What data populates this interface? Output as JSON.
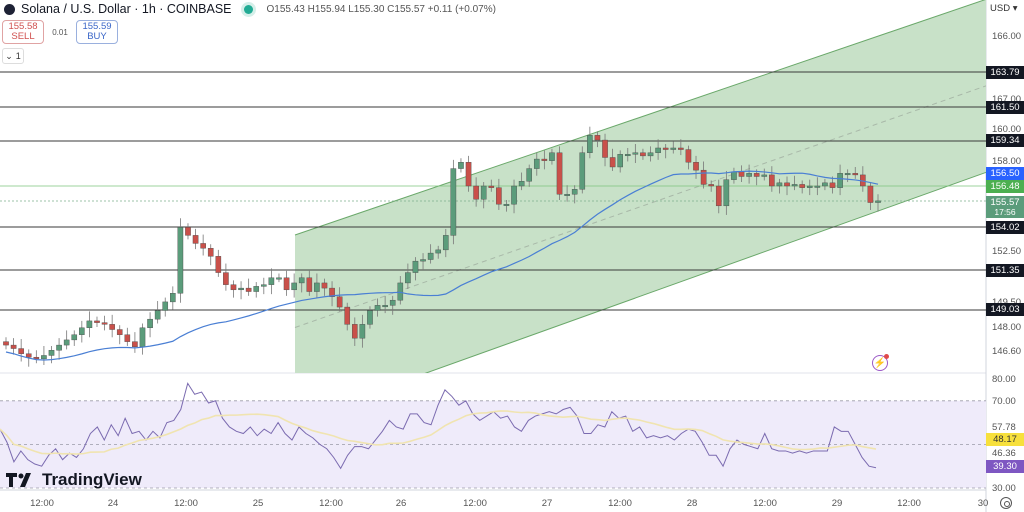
{
  "header": {
    "symbol": "Solana / U.S. Dollar · 1h · COINBASE",
    "ohlc": "O155.43 H155.94 L155.30 C155.57 +0.11 (+0.07%)",
    "sell_price": "155.58",
    "sell_label": "SELL",
    "spread": "0.01",
    "buy_price": "155.59",
    "buy_label": "BUY",
    "collapse_count": "1",
    "currency": "USD"
  },
  "branding": {
    "logo_text": "TradingView"
  },
  "colors": {
    "up": "#5b9c7b",
    "down": "#c9504a",
    "channel_fill": "#c8e1c8",
    "channel_line": "#6aa86a",
    "ma": "#4a7fd4",
    "rsi": "#7b6bb0",
    "rsi_ma": "#f0e4b0",
    "rsi_band": "#efebfa",
    "level": "#3a3a3a"
  },
  "price_axis": {
    "labels": [
      "166.00",
      "167.00",
      "160.00",
      "158.00",
      "152.50",
      "149.50",
      "148.00",
      "146.60"
    ],
    "tags": [
      {
        "value": "163.79",
        "color": "#131722"
      },
      {
        "value": "161.50",
        "color": "#131722"
      },
      {
        "value": "159.34",
        "color": "#131722"
      },
      {
        "value": "156.50",
        "color": "#2962ff"
      },
      {
        "value": "156.48",
        "color": "#4caf50"
      },
      {
        "value": "155.57",
        "color": "#5b9c7b"
      },
      {
        "value": "154.02",
        "color": "#131722"
      },
      {
        "value": "151.35",
        "color": "#131722"
      },
      {
        "value": "149.03",
        "color": "#131722"
      }
    ],
    "countdown": "17:56"
  },
  "rsi_axis": {
    "labels": [
      "80.00",
      "70.00",
      "57.78",
      "46.36",
      "30.00"
    ],
    "tags": [
      {
        "value": "48.17",
        "color": "#f7e03c",
        "text_color": "#333"
      },
      {
        "value": "39.30",
        "color": "#7e57c2",
        "text_color": "#fff"
      }
    ]
  },
  "time_axis": {
    "labels": [
      "12:00",
      "24",
      "12:00",
      "25",
      "12:00",
      "26",
      "12:00",
      "27",
      "12:00",
      "28",
      "12:00",
      "29",
      "12:00",
      "30"
    ]
  },
  "chart_data": [
    {
      "type": "candlestick",
      "title": "Solana / U.S. Dollar · 1h · COINBASE",
      "ylabel": "USD",
      "ylim": [
        145.5,
        167.5
      ],
      "x_ticks": [
        "12:00",
        "24",
        "12:00",
        "25",
        "12:00",
        "26",
        "12:00",
        "27",
        "12:00",
        "28",
        "12:00",
        "29",
        "12:00",
        "30"
      ],
      "horizontal_levels": [
        163.79,
        161.5,
        159.34,
        154.02,
        151.35,
        149.03
      ],
      "last_close": 155.57,
      "ma_last": 156.5,
      "ohlc_last": {
        "open": 155.43,
        "high": 155.94,
        "low": 155.3,
        "close": 155.57,
        "change": 0.11,
        "change_pct": 0.07
      },
      "ascending_channel": {
        "start_x_label": "25 ~08:00",
        "upper": [
          154.2,
          170.0
        ],
        "lower": [
          146.0,
          159.0
        ]
      },
      "close_series_approx": [
        147.0,
        146.8,
        146.5,
        146.3,
        146.2,
        146.4,
        146.7,
        147.0,
        147.3,
        147.6,
        148.0,
        148.4,
        148.3,
        148.2,
        147.9,
        147.6,
        147.2,
        146.9,
        148.0,
        148.5,
        149.0,
        149.5,
        150.0,
        154.0,
        153.5,
        153.0,
        152.7,
        152.2,
        151.2,
        150.5,
        150.2,
        150.3,
        150.1,
        150.4,
        150.5,
        150.9,
        150.9,
        150.2,
        150.6,
        150.9,
        150.1,
        150.6,
        150.3,
        149.8,
        149.2,
        148.2,
        147.4,
        148.2,
        149.0,
        149.3,
        149.3,
        149.6,
        150.6,
        151.2,
        151.9,
        152.0,
        152.4,
        152.6,
        153.5,
        157.6,
        158.0,
        156.5,
        155.7,
        156.5,
        156.4,
        155.4,
        155.4,
        156.5,
        156.8,
        157.6,
        158.2,
        158.1,
        158.6,
        156.0,
        156.0,
        156.3,
        158.6,
        159.7,
        159.4,
        158.3,
        157.7,
        158.5,
        158.5,
        158.6,
        158.4,
        158.6,
        158.9,
        158.8,
        158.9,
        158.8,
        158.0,
        157.5,
        156.6,
        156.5,
        155.3,
        156.9,
        157.4,
        157.1,
        157.3,
        157.1,
        157.2,
        156.5,
        156.7,
        156.5,
        156.6,
        156.4,
        156.5,
        156.5,
        156.7,
        156.4,
        157.3,
        157.3,
        157.2,
        156.5,
        155.5,
        155.6
      ]
    },
    {
      "type": "line",
      "title": "RSI",
      "ylim": [
        28,
        82
      ],
      "bands": [
        70,
        30
      ],
      "midline": 50,
      "series": [
        {
          "name": "RSI",
          "last": 39.3
        },
        {
          "name": "RSI MA",
          "last": 48.17
        }
      ],
      "labels_shown": [
        57.78,
        46.36
      ],
      "rsi_series_approx": [
        57,
        51,
        42,
        47,
        43,
        41,
        40,
        45,
        48,
        43,
        46,
        44,
        48,
        55,
        58,
        52,
        59,
        54,
        62,
        55,
        56,
        52,
        56,
        53,
        60,
        61,
        66,
        78,
        73,
        74,
        69,
        70,
        62,
        58,
        56,
        55,
        58,
        54,
        57,
        55,
        60,
        55,
        52,
        58,
        55,
        53,
        50,
        48,
        44,
        39,
        45,
        49,
        49,
        48,
        52,
        56,
        61,
        58,
        57,
        64,
        64,
        60,
        59,
        68,
        75,
        72,
        68,
        70,
        64,
        61,
        63,
        65,
        62,
        63,
        58,
        56,
        61,
        63,
        64,
        65,
        64,
        66,
        67,
        63,
        55,
        55,
        59,
        58,
        65,
        62,
        63,
        56,
        58,
        53,
        54,
        53,
        54,
        52,
        55,
        57,
        56,
        51,
        45,
        45,
        40,
        48,
        52,
        50,
        49,
        48,
        55,
        48,
        47,
        47,
        46,
        47,
        46,
        47,
        47,
        47,
        58,
        56,
        56,
        50,
        44,
        40,
        39.3
      ]
    }
  ]
}
